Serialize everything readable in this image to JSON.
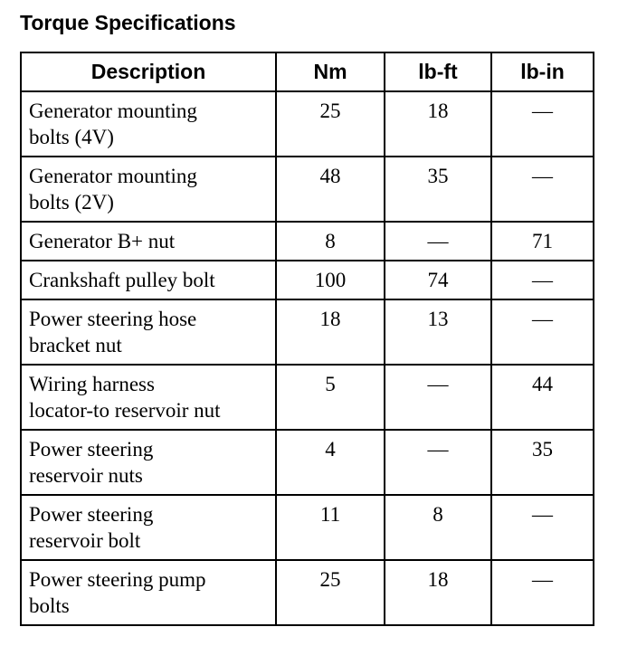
{
  "title": "Torque Specifications",
  "columns": [
    "Description",
    "Nm",
    "lb-ft",
    "lb-in"
  ],
  "rows": [
    {
      "description": "Generator mounting\nbolts (4V)",
      "nm": "25",
      "lbft": "18",
      "lbin": "—"
    },
    {
      "description": "Generator mounting\nbolts (2V)",
      "nm": "48",
      "lbft": "35",
      "lbin": "—"
    },
    {
      "description": "Generator B+ nut",
      "nm": "8",
      "lbft": "—",
      "lbin": "71"
    },
    {
      "description": "Crankshaft pulley bolt",
      "nm": "100",
      "lbft": "74",
      "lbin": "—"
    },
    {
      "description": "Power steering hose\nbracket nut",
      "nm": "18",
      "lbft": "13",
      "lbin": "—"
    },
    {
      "description": "Wiring harness\nlocator-to reservoir nut",
      "nm": "5",
      "lbft": "—",
      "lbin": "44"
    },
    {
      "description": "Power steering\nreservoir nuts",
      "nm": "4",
      "lbft": "—",
      "lbin": "35"
    },
    {
      "description": "Power steering\nreservoir bolt",
      "nm": "11",
      "lbft": "8",
      "lbin": "—"
    },
    {
      "description": "Power steering pump\nbolts",
      "nm": "25",
      "lbft": "18",
      "lbin": "—"
    }
  ]
}
